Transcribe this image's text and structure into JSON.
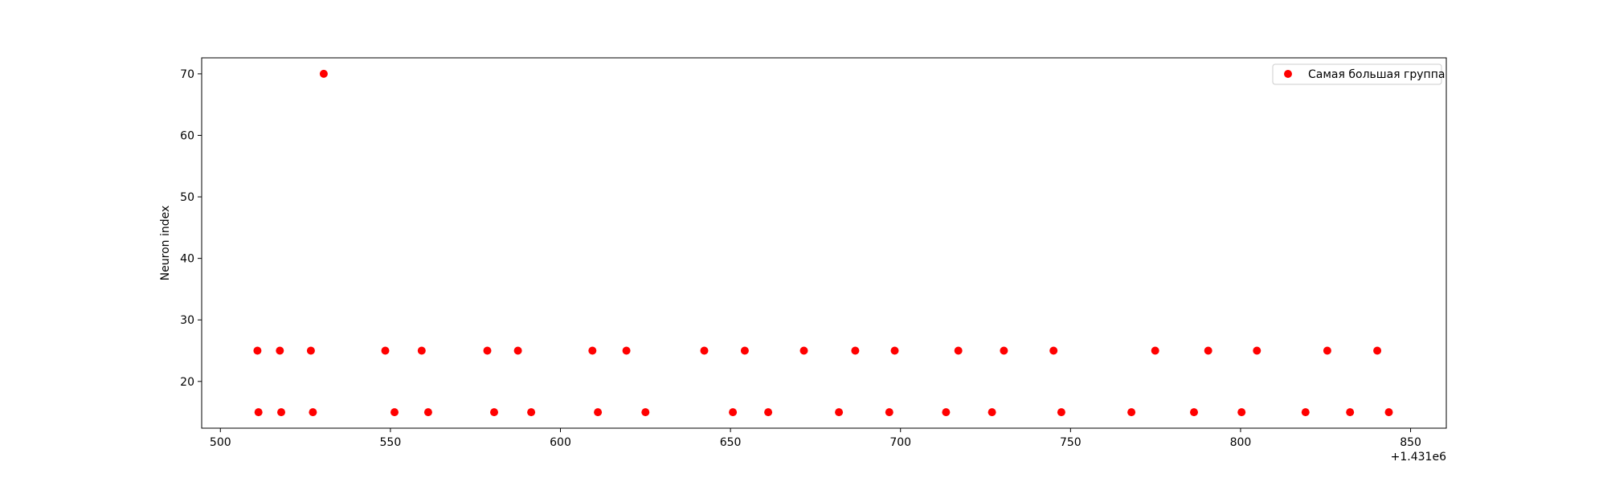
{
  "chart_data": {
    "type": "scatter",
    "title": "",
    "xlabel": "",
    "ylabel": "Neuron index",
    "x_offset_label": "+1.431e6",
    "xlim": [
      494.5,
      860.5
    ],
    "ylim": [
      12.4,
      72.6
    ],
    "xticks": [
      500,
      550,
      600,
      650,
      700,
      750,
      800,
      850
    ],
    "yticks": [
      20,
      30,
      40,
      50,
      60,
      70
    ],
    "grid": false,
    "legend_position": "top-right",
    "colors": {
      "marker": "#ff0000",
      "axis": "#000000",
      "background": "#ffffff"
    },
    "series": [
      {
        "name": "Самая большая группа",
        "x": [
          510.9,
          517.5,
          526.6,
          548.5,
          559.2,
          578.5,
          587.5,
          609.4,
          619.4,
          642.3,
          654.2,
          671.6,
          686.7,
          698.3,
          717.0,
          730.4,
          745.0,
          774.9,
          790.5,
          804.8,
          825.5,
          840.2,
          511.2,
          517.9,
          527.2,
          530.4,
          551.2,
          561.1,
          580.5,
          591.4,
          611.0,
          625.0,
          650.7,
          661.1,
          681.9,
          696.7,
          713.4,
          726.9,
          747.3,
          767.9,
          786.3,
          800.3,
          819.1,
          832.2,
          843.6
        ],
        "y": [
          25,
          25,
          25,
          25,
          25,
          25,
          25,
          25,
          25,
          25,
          25,
          25,
          25,
          25,
          25,
          25,
          25,
          25,
          25,
          25,
          25,
          25,
          15,
          15,
          15,
          70,
          15,
          15,
          15,
          15,
          15,
          15,
          15,
          15,
          15,
          15,
          15,
          15,
          15,
          15,
          15,
          15,
          15,
          15,
          15
        ]
      }
    ]
  }
}
